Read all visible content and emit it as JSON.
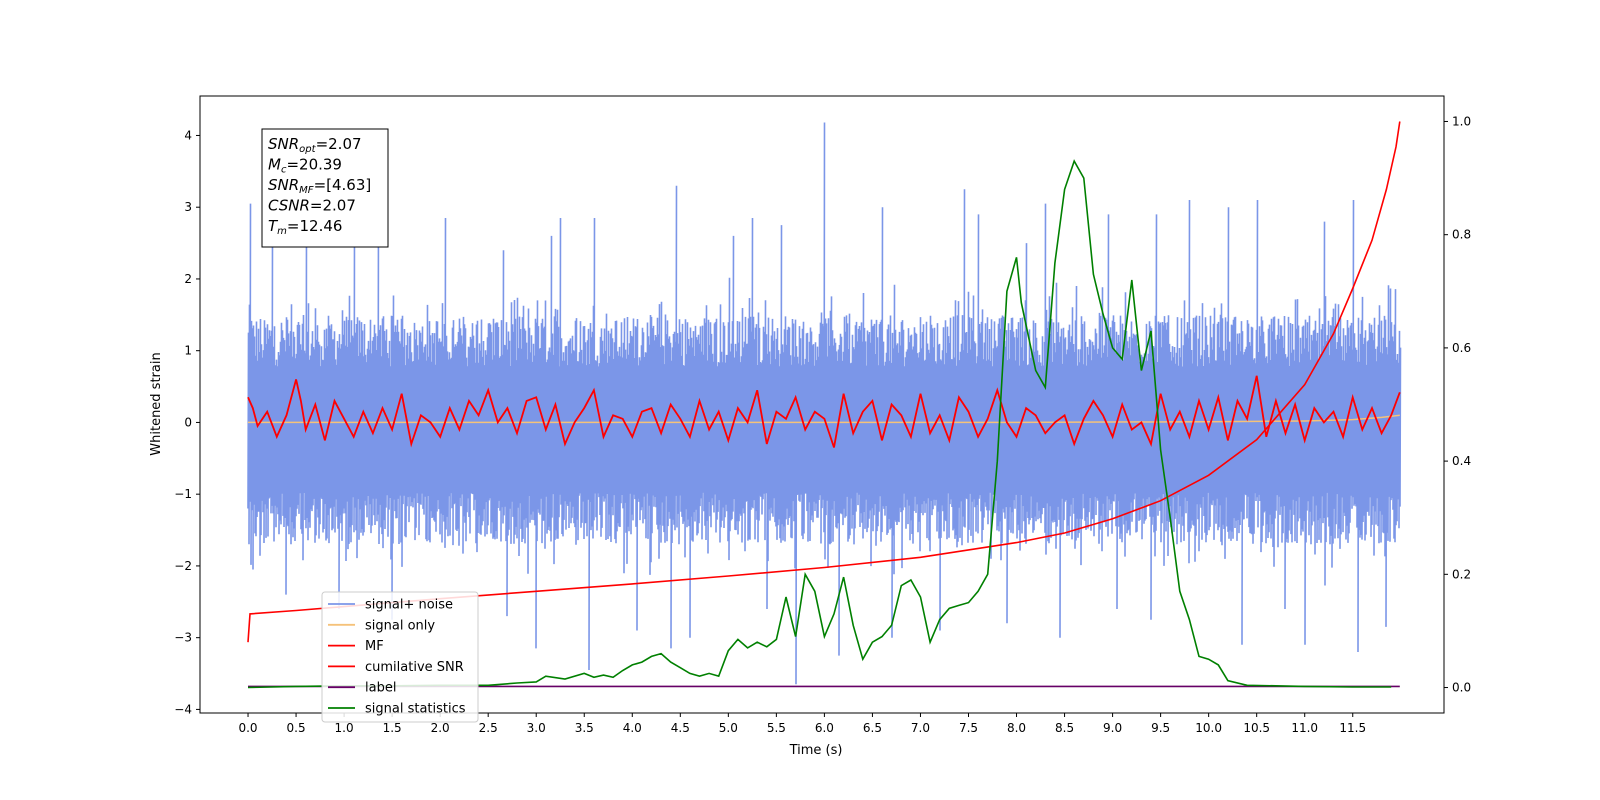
{
  "chart_data": {
    "type": "line",
    "xlabel": "Time (s)",
    "ylabel": "Whitened strain",
    "xlim": [
      -0.5,
      12.45
    ],
    "ylim": [
      -4.05,
      4.55
    ],
    "y2lim": [
      -0.045,
      1.045
    ],
    "x_ticks": [
      0.0,
      0.5,
      1.0,
      1.5,
      2.0,
      2.5,
      3.0,
      3.5,
      4.0,
      4.5,
      5.0,
      5.5,
      6.0,
      6.5,
      7.0,
      7.5,
      8.0,
      8.5,
      9.0,
      9.5,
      10.0,
      10.5,
      11.0,
      11.5
    ],
    "x_tick_labels": [
      "0.0",
      "0.5",
      "1.0",
      "1.5",
      "2.0",
      "2.5",
      "3.0",
      "3.5",
      "4.0",
      "4.5",
      "5.0",
      "5.5",
      "6.0",
      "6.5",
      "7.0",
      "7.5",
      "8.0",
      "8.5",
      "9.0",
      "9.5",
      "10.0",
      "10.5",
      "11.0",
      "11.5"
    ],
    "y_ticks": [
      -4,
      -3,
      -2,
      -1,
      0,
      1,
      2,
      3,
      4
    ],
    "y_tick_labels": [
      "−4",
      "−3",
      "−2",
      "−1",
      "0",
      "1",
      "2",
      "3",
      "4"
    ],
    "y2_ticks": [
      0.0,
      0.2,
      0.4,
      0.6,
      0.8,
      1.0
    ],
    "y2_tick_labels": [
      "0.0",
      "0.2",
      "0.4",
      "0.6",
      "0.8",
      "1.0"
    ],
    "grid": false,
    "legend_position": "lower-left",
    "colors": {
      "signal_noise": "#7b96e8",
      "signal_only": "#f5c27a",
      "mf": "#ff0000",
      "cumulative_snr": "#ff0000",
      "label": "#660066",
      "statistics": "#008000"
    },
    "signal_noise": {
      "x_range": [
        0.0,
        11.99
      ],
      "center": -0.1,
      "band_upper": 1.5,
      "band_lower": -1.7,
      "spikes": [
        {
          "x": 0.02,
          "y": 3.05
        },
        {
          "x": 0.25,
          "y": 2.6
        },
        {
          "x": 0.6,
          "y": 2.7
        },
        {
          "x": 1.1,
          "y": 2.7
        },
        {
          "x": 1.35,
          "y": 3.1
        },
        {
          "x": 2.05,
          "y": 2.85
        },
        {
          "x": 2.65,
          "y": 2.4
        },
        {
          "x": 3.15,
          "y": 2.6
        },
        {
          "x": 3.25,
          "y": 2.85
        },
        {
          "x": 3.6,
          "y": 2.85
        },
        {
          "x": 4.45,
          "y": 3.3
        },
        {
          "x": 5.05,
          "y": 2.6
        },
        {
          "x": 5.25,
          "y": 2.85
        },
        {
          "x": 5.55,
          "y": 2.75
        },
        {
          "x": 6.0,
          "y": 4.18
        },
        {
          "x": 6.6,
          "y": 3.0
        },
        {
          "x": 7.2,
          "y": 2.8
        },
        {
          "x": 7.45,
          "y": 3.25
        },
        {
          "x": 7.6,
          "y": 2.9
        },
        {
          "x": 8.1,
          "y": 2.5
        },
        {
          "x": 8.3,
          "y": 3.05
        },
        {
          "x": 8.95,
          "y": 2.9
        },
        {
          "x": 9.45,
          "y": 2.9
        },
        {
          "x": 9.8,
          "y": 3.1
        },
        {
          "x": 10.2,
          "y": 3.0
        },
        {
          "x": 10.5,
          "y": 3.1
        },
        {
          "x": 11.2,
          "y": 2.8
        },
        {
          "x": 11.5,
          "y": 3.1
        },
        {
          "x": 0.05,
          "y": -2.05
        },
        {
          "x": 0.4,
          "y": -2.4
        },
        {
          "x": 0.95,
          "y": -2.6
        },
        {
          "x": 1.5,
          "y": -2.75
        },
        {
          "x": 2.7,
          "y": -2.7
        },
        {
          "x": 3.0,
          "y": -3.15
        },
        {
          "x": 3.55,
          "y": -3.45
        },
        {
          "x": 4.05,
          "y": -2.9
        },
        {
          "x": 4.4,
          "y": -3.15
        },
        {
          "x": 4.6,
          "y": -3.0
        },
        {
          "x": 5.4,
          "y": -2.6
        },
        {
          "x": 5.7,
          "y": -3.65
        },
        {
          "x": 6.15,
          "y": -3.25
        },
        {
          "x": 6.7,
          "y": -3.0
        },
        {
          "x": 7.2,
          "y": -2.9
        },
        {
          "x": 7.9,
          "y": -2.8
        },
        {
          "x": 8.45,
          "y": -3.0
        },
        {
          "x": 9.05,
          "y": -2.6
        },
        {
          "x": 9.4,
          "y": -2.75
        },
        {
          "x": 10.35,
          "y": -3.1
        },
        {
          "x": 10.8,
          "y": -2.6
        },
        {
          "x": 11.0,
          "y": -3.1
        },
        {
          "x": 11.55,
          "y": -3.2
        },
        {
          "x": 11.85,
          "y": -2.85
        }
      ]
    },
    "signal_only": {
      "x": [
        0.0,
        2.0,
        4.0,
        6.0,
        8.0,
        10.0,
        11.0,
        11.5,
        11.8,
        11.99
      ],
      "y": [
        0.0,
        0.0,
        0.0,
        0.0,
        0.0,
        0.01,
        0.02,
        0.04,
        0.07,
        0.1
      ]
    },
    "mf": {
      "x": [
        0.0,
        0.05,
        0.1,
        0.2,
        0.3,
        0.4,
        0.5,
        0.55,
        0.6,
        0.7,
        0.8,
        0.9,
        1.0,
        1.1,
        1.2,
        1.3,
        1.4,
        1.5,
        1.6,
        1.7,
        1.8,
        1.9,
        2.0,
        2.1,
        2.2,
        2.3,
        2.4,
        2.5,
        2.6,
        2.7,
        2.8,
        2.9,
        3.0,
        3.1,
        3.2,
        3.3,
        3.4,
        3.5,
        3.6,
        3.7,
        3.8,
        3.9,
        4.0,
        4.1,
        4.2,
        4.3,
        4.4,
        4.5,
        4.6,
        4.7,
        4.8,
        4.9,
        5.0,
        5.1,
        5.2,
        5.3,
        5.4,
        5.5,
        5.6,
        5.7,
        5.8,
        5.9,
        6.0,
        6.1,
        6.2,
        6.3,
        6.4,
        6.5,
        6.6,
        6.7,
        6.8,
        6.9,
        7.0,
        7.1,
        7.2,
        7.3,
        7.4,
        7.5,
        7.6,
        7.7,
        7.8,
        7.9,
        8.0,
        8.1,
        8.2,
        8.3,
        8.4,
        8.5,
        8.6,
        8.7,
        8.8,
        8.9,
        9.0,
        9.1,
        9.2,
        9.3,
        9.4,
        9.5,
        9.6,
        9.7,
        9.8,
        9.9,
        10.0,
        10.1,
        10.2,
        10.3,
        10.4,
        10.5,
        10.6,
        10.7,
        10.8,
        10.9,
        11.0,
        11.1,
        11.2,
        11.3,
        11.4,
        11.5,
        11.6,
        11.7,
        11.8,
        11.9,
        11.99
      ],
      "y": [
        0.35,
        0.2,
        -0.05,
        0.15,
        -0.2,
        0.1,
        0.6,
        0.3,
        -0.1,
        0.25,
        -0.25,
        0.3,
        0.05,
        -0.2,
        0.15,
        -0.15,
        0.2,
        -0.1,
        0.4,
        -0.3,
        0.1,
        0.0,
        -0.2,
        0.2,
        -0.1,
        0.3,
        0.1,
        0.45,
        0.0,
        0.2,
        -0.15,
        0.3,
        0.35,
        -0.1,
        0.25,
        -0.3,
        0.0,
        0.2,
        0.45,
        -0.2,
        0.1,
        0.05,
        -0.2,
        0.15,
        0.2,
        -0.15,
        0.25,
        0.05,
        -0.2,
        0.3,
        -0.1,
        0.15,
        -0.25,
        0.2,
        0.0,
        0.45,
        -0.3,
        0.15,
        0.05,
        0.35,
        -0.1,
        0.15,
        0.05,
        -0.35,
        0.4,
        -0.15,
        0.15,
        0.3,
        -0.25,
        0.25,
        0.1,
        -0.2,
        0.4,
        -0.15,
        0.1,
        -0.25,
        0.35,
        0.15,
        -0.2,
        0.05,
        0.45,
        0.0,
        -0.2,
        0.2,
        0.1,
        -0.15,
        0.0,
        0.1,
        -0.3,
        0.05,
        0.3,
        0.1,
        -0.2,
        0.25,
        -0.1,
        0.0,
        -0.3,
        0.4,
        -0.1,
        0.15,
        -0.2,
        0.3,
        -0.1,
        0.35,
        -0.25,
        0.3,
        0.05,
        0.65,
        -0.2,
        0.3,
        -0.15,
        0.25,
        -0.25,
        0.2,
        0.0,
        0.15,
        -0.2,
        0.35,
        -0.1,
        0.2,
        -0.15,
        0.1,
        0.42
      ]
    },
    "cumulative_snr": {
      "x": [
        0.0,
        0.02,
        0.5,
        1.0,
        2.0,
        3.0,
        4.0,
        5.0,
        6.0,
        7.0,
        8.0,
        8.5,
        9.0,
        9.5,
        10.0,
        10.5,
        11.0,
        11.3,
        11.5,
        11.7,
        11.85,
        11.95,
        11.99
      ],
      "y": [
        0.08,
        0.13,
        0.136,
        0.143,
        0.157,
        0.17,
        0.183,
        0.197,
        0.212,
        0.23,
        0.256,
        0.273,
        0.298,
        0.33,
        0.375,
        0.438,
        0.535,
        0.625,
        0.705,
        0.79,
        0.88,
        0.955,
        1.0
      ]
    },
    "label_line": {
      "x": [
        0.0,
        11.99
      ],
      "y": [
        0.002,
        0.002
      ]
    },
    "statistics": {
      "x": [
        0.0,
        0.5,
        1.0,
        1.5,
        2.0,
        2.5,
        2.8,
        3.0,
        3.1,
        3.3,
        3.5,
        3.6,
        3.7,
        3.8,
        3.9,
        4.0,
        4.1,
        4.2,
        4.3,
        4.4,
        4.5,
        4.6,
        4.7,
        4.8,
        4.9,
        5.0,
        5.1,
        5.2,
        5.3,
        5.4,
        5.5,
        5.6,
        5.7,
        5.8,
        5.9,
        6.0,
        6.1,
        6.2,
        6.3,
        6.4,
        6.5,
        6.6,
        6.7,
        6.8,
        6.9,
        7.0,
        7.1,
        7.2,
        7.3,
        7.4,
        7.5,
        7.6,
        7.7,
        7.8,
        7.9,
        8.0,
        8.05,
        8.1,
        8.2,
        8.3,
        8.4,
        8.5,
        8.6,
        8.7,
        8.8,
        8.9,
        9.0,
        9.1,
        9.2,
        9.3,
        9.4,
        9.5,
        9.6,
        9.7,
        9.8,
        9.9,
        10.0,
        10.1,
        10.2,
        10.4,
        11.0,
        11.5,
        11.9
      ],
      "y": [
        0.0,
        0.002,
        0.003,
        0.003,
        0.004,
        0.004,
        0.008,
        0.01,
        0.02,
        0.015,
        0.025,
        0.018,
        0.022,
        0.018,
        0.03,
        0.04,
        0.045,
        0.055,
        0.06,
        0.045,
        0.035,
        0.025,
        0.02,
        0.025,
        0.02,
        0.065,
        0.085,
        0.07,
        0.08,
        0.072,
        0.085,
        0.16,
        0.09,
        0.2,
        0.17,
        0.09,
        0.13,
        0.195,
        0.11,
        0.05,
        0.08,
        0.09,
        0.11,
        0.18,
        0.19,
        0.16,
        0.08,
        0.12,
        0.14,
        0.145,
        0.15,
        0.17,
        0.2,
        0.4,
        0.7,
        0.76,
        0.68,
        0.64,
        0.56,
        0.53,
        0.75,
        0.88,
        0.93,
        0.9,
        0.73,
        0.66,
        0.6,
        0.58,
        0.72,
        0.56,
        0.63,
        0.42,
        0.3,
        0.17,
        0.12,
        0.055,
        0.05,
        0.04,
        0.012,
        0.004,
        0.002,
        0.001,
        0.001
      ]
    },
    "legend": [
      {
        "label": "signal+ noise",
        "color": "#7b96e8"
      },
      {
        "label": "signal only",
        "color": "#f5c27a"
      },
      {
        "label": "MF",
        "color": "#ff0000"
      },
      {
        "label": "cumilative SNR",
        "color": "#ff0000"
      },
      {
        "label": "label",
        "color": "#660066"
      },
      {
        "label": "signal statistics",
        "color": "#008000"
      }
    ],
    "annotation": [
      {
        "main": "SNR",
        "sub": "opt",
        "rest": "=2.07"
      },
      {
        "main": "M",
        "sub": "c",
        "rest": "=20.39"
      },
      {
        "main": "SNR",
        "sub": "MF",
        "rest": "=[4.63]"
      },
      {
        "main": "CSNR",
        "sub": "",
        "rest": "=2.07"
      },
      {
        "main": "T",
        "sub": "m",
        "rest": "=12.46"
      }
    ]
  }
}
